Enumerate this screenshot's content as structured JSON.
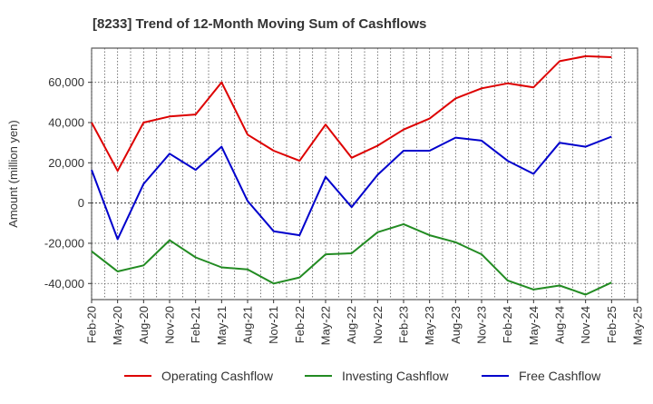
{
  "chart_data": {
    "type": "line",
    "title": "[8233]  Trend of 12-Month Moving Sum of Cashflows",
    "xlabel": "",
    "ylabel": "Amount (million yen)",
    "ylim": [
      -48000,
      77000
    ],
    "yticks": [
      -40000,
      -20000,
      0,
      20000,
      40000,
      60000
    ],
    "ytick_labels": [
      "-40,000",
      "-20,000",
      "0",
      "20,000",
      "40,000",
      "60,000"
    ],
    "xtick_labels": [
      "Feb-20",
      "May-20",
      "Aug-20",
      "Nov-20",
      "Feb-21",
      "May-21",
      "Aug-21",
      "Nov-21",
      "Feb-22",
      "May-22",
      "Aug-22",
      "Nov-22",
      "Feb-23",
      "May-23",
      "Aug-23",
      "Nov-23",
      "Feb-24",
      "May-24",
      "Aug-24",
      "Nov-24",
      "Feb-25",
      "May-25"
    ],
    "x": [
      "Feb-20",
      "May-20",
      "Aug-20",
      "Nov-20",
      "Feb-21",
      "May-21",
      "Aug-21",
      "Nov-21",
      "Feb-22",
      "May-22",
      "Aug-22",
      "Nov-22",
      "Feb-23",
      "May-23",
      "Aug-23",
      "Nov-23",
      "Feb-24",
      "May-24",
      "Aug-24",
      "Nov-24",
      "Feb-25"
    ],
    "grid": true,
    "legend_position": "bottom",
    "series": [
      {
        "name": "Operating Cashflow",
        "color": "#dd0000",
        "values": [
          40000,
          16000,
          40000,
          43000,
          44000,
          60000,
          34000,
          26000,
          21000,
          39000,
          22500,
          28500,
          36500,
          42000,
          52000,
          57000,
          59500,
          57500,
          70500,
          73000,
          72500
        ]
      },
      {
        "name": "Investing Cashflow",
        "color": "#228b22",
        "values": [
          -24000,
          -34000,
          -31000,
          -18500,
          -27000,
          -32000,
          -33000,
          -40000,
          -37000,
          -25500,
          -25000,
          -14500,
          -10500,
          -16000,
          -19500,
          -25500,
          -38500,
          -43000,
          -41000,
          -45500,
          -39500
        ]
      },
      {
        "name": "Free Cashflow",
        "color": "#0000cc",
        "values": [
          16500,
          -18000,
          9500,
          24500,
          16500,
          28000,
          1000,
          -14000,
          -16000,
          13000,
          -2000,
          14000,
          26000,
          26000,
          32500,
          31000,
          21000,
          14500,
          30000,
          28000,
          33000
        ]
      }
    ]
  }
}
